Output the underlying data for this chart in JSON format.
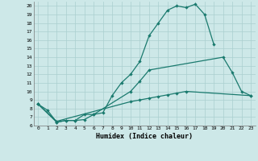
{
  "xlabel": "Humidex (Indice chaleur)",
  "bg_color": "#cde8e8",
  "line_color": "#1a7a6e",
  "grid_color": "#aacfcf",
  "xlim": [
    -0.5,
    23.5
  ],
  "ylim": [
    6,
    20.5
  ],
  "xticks": [
    0,
    1,
    2,
    3,
    4,
    5,
    6,
    7,
    8,
    9,
    10,
    11,
    12,
    13,
    14,
    15,
    16,
    17,
    18,
    19,
    20,
    21,
    22,
    23
  ],
  "yticks": [
    6,
    7,
    8,
    9,
    10,
    11,
    12,
    13,
    14,
    15,
    16,
    17,
    18,
    19,
    20
  ],
  "curve1_x": [
    0,
    1,
    2,
    3,
    4,
    5,
    6,
    7,
    8,
    9,
    10,
    11,
    12,
    13,
    14,
    15,
    16,
    17,
    18,
    19
  ],
  "curve1_y": [
    8.5,
    7.8,
    6.4,
    6.6,
    6.6,
    6.7,
    7.3,
    7.5,
    9.5,
    11.0,
    12.0,
    13.5,
    16.5,
    18.0,
    19.5,
    20.0,
    19.8,
    20.2,
    19.0,
    15.5
  ],
  "curve2_x": [
    0,
    2,
    3,
    4,
    5,
    6,
    10,
    11,
    12,
    20,
    21,
    22,
    23
  ],
  "curve2_y": [
    8.5,
    6.4,
    6.6,
    6.6,
    7.3,
    7.3,
    10.0,
    11.2,
    12.5,
    14.0,
    12.2,
    10.0,
    9.5
  ],
  "curve3_x": [
    0,
    2,
    10,
    11,
    12,
    13,
    14,
    15,
    16,
    23
  ],
  "curve3_y": [
    8.5,
    6.5,
    8.8,
    9.0,
    9.2,
    9.4,
    9.6,
    9.8,
    10.0,
    9.5
  ]
}
